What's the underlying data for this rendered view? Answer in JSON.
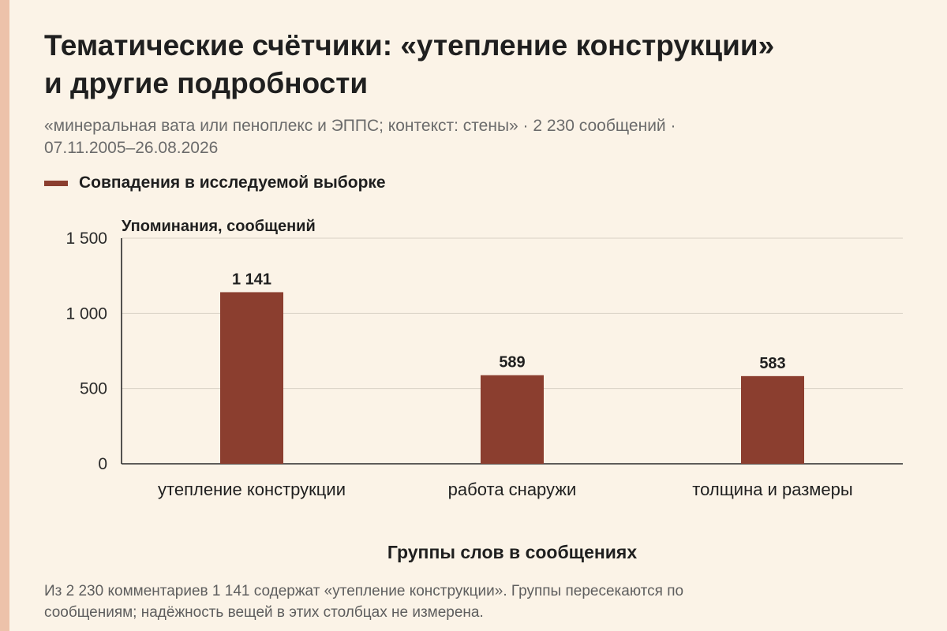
{
  "header": {
    "title_lines": [
      "Тематические счётчики: «утепление конструкции»",
      "и другие подробности"
    ],
    "subtitle_lines": [
      "«минеральная вата или пеноплекс и ЭППС; контекст: стены» · 2 230 сообщений ·",
      "07.11.2005–26.08.2026"
    ]
  },
  "footnote_lines": [
    "Из 2 230 комментариев 1 141 содержат «утепление конструкции». Группы пересекаются по",
    "сообщениям; надёжность вещей в этих столбцах не измерена."
  ],
  "colors": {
    "bar": "#8b3e2f",
    "background": "#fbf3e7",
    "accent_strip": "#edc2aa",
    "grid": "#d9d2c6"
  },
  "chart_data": {
    "type": "bar",
    "categories": [
      "утепление конструкции",
      "работа снаружи",
      "толщина и размеры"
    ],
    "series": [
      {
        "name": "Совпадения в исследуемой выборке",
        "values": [
          1141,
          589,
          583
        ]
      }
    ],
    "value_labels": [
      "1 141",
      "589",
      "583"
    ],
    "ylabel": "Упоминания, сообщений",
    "xlabel": "Группы слов в сообщениях",
    "ylim": [
      0,
      1500
    ],
    "yticks": [
      0,
      500,
      1000,
      1500
    ],
    "ytick_labels": [
      "0",
      "500",
      "1 000",
      "1 500"
    ],
    "grid": true,
    "legend": "top-left"
  }
}
